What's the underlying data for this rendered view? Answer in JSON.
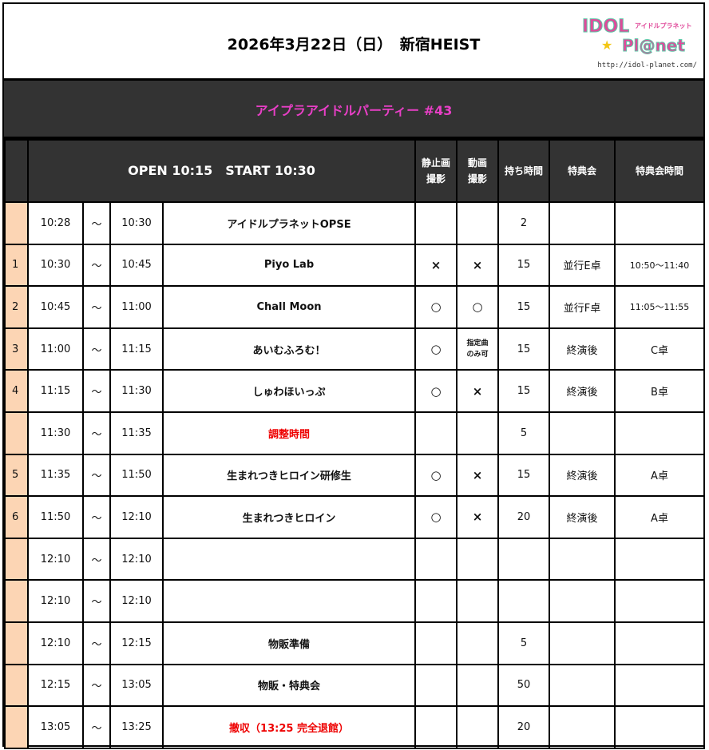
{
  "header": {
    "title": "2026年3月22日（日）　新宿HEIST",
    "logo_text": "IDOL Pl@net",
    "logo_subtext": "アイドルプラネット",
    "logo_url": "http://idol-planet.com/"
  },
  "event": {
    "title": "アイプラアイドルパーティー #43"
  },
  "columns": {
    "open_start": "OPEN 10:15　START 10:30",
    "photo": [
      "静止画",
      "撮影"
    ],
    "video": [
      "動画",
      "撮影"
    ],
    "duration": "持ち時間",
    "benefit": "特典会",
    "benefit_time": "特典会時間"
  },
  "rows": [
    {
      "no": "",
      "start": "10:28",
      "sep": "～",
      "end": "10:30",
      "name": "アイドルプラネットOPSE",
      "red": false,
      "photo": "",
      "video": "",
      "dur": "2",
      "benefit": "",
      "btime": ""
    },
    {
      "no": "1",
      "start": "10:30",
      "sep": "～",
      "end": "10:45",
      "name": "Piyo Lab",
      "red": false,
      "photo": "×",
      "video": "×",
      "dur": "15",
      "benefit": "並行E卓",
      "btime": "10:50～11:40"
    },
    {
      "no": "2",
      "start": "10:45",
      "sep": "～",
      "end": "11:00",
      "name": "Chall Moon",
      "red": false,
      "photo": "○",
      "video": "○",
      "dur": "15",
      "benefit": "並行F卓",
      "btime": "11:05～11:55"
    },
    {
      "no": "3",
      "start": "11:00",
      "sep": "～",
      "end": "11:15",
      "name": "あいむふろむ！",
      "red": false,
      "photo": "○",
      "video": "指定曲のみ可",
      "dur": "15",
      "benefit": "終演後",
      "btime": "C卓"
    },
    {
      "no": "4",
      "start": "11:15",
      "sep": "～",
      "end": "11:30",
      "name": "しゅわほいっぷ",
      "red": false,
      "photo": "○",
      "video": "×",
      "dur": "15",
      "benefit": "終演後",
      "btime": "B卓"
    },
    {
      "no": "",
      "start": "11:30",
      "sep": "～",
      "end": "11:35",
      "name": "調整時間",
      "red": true,
      "photo": "",
      "video": "",
      "dur": "5",
      "benefit": "",
      "btime": ""
    },
    {
      "no": "5",
      "start": "11:35",
      "sep": "～",
      "end": "11:50",
      "name": "生まれつきヒロイン研修生",
      "red": false,
      "photo": "○",
      "video": "×",
      "dur": "15",
      "benefit": "終演後",
      "btime": "A卓"
    },
    {
      "no": "6",
      "start": "11:50",
      "sep": "～",
      "end": "12:10",
      "name": "生まれつきヒロイン",
      "red": false,
      "photo": "○",
      "video": "×",
      "dur": "20",
      "benefit": "終演後",
      "btime": "A卓"
    },
    {
      "no": "",
      "start": "12:10",
      "sep": "～",
      "end": "12:10",
      "name": "",
      "red": false,
      "photo": "",
      "video": "",
      "dur": "",
      "benefit": "",
      "btime": ""
    },
    {
      "no": "",
      "start": "12:10",
      "sep": "～",
      "end": "12:10",
      "name": "",
      "red": false,
      "photo": "",
      "video": "",
      "dur": "",
      "benefit": "",
      "btime": ""
    },
    {
      "no": "",
      "start": "12:10",
      "sep": "～",
      "end": "12:15",
      "name": "物販準備",
      "red": false,
      "photo": "",
      "video": "",
      "dur": "5",
      "benefit": "",
      "btime": ""
    },
    {
      "no": "",
      "start": "12:15",
      "sep": "～",
      "end": "13:05",
      "name": "物販・特典会",
      "red": false,
      "photo": "",
      "video": "",
      "dur": "50",
      "benefit": "",
      "btime": ""
    },
    {
      "no": "",
      "start": "13:05",
      "sep": "～",
      "end": "13:25",
      "name": "撤収（13:25 完全退館）",
      "red": true,
      "photo": "",
      "video": "",
      "dur": "20",
      "benefit": "",
      "btime": ""
    }
  ]
}
